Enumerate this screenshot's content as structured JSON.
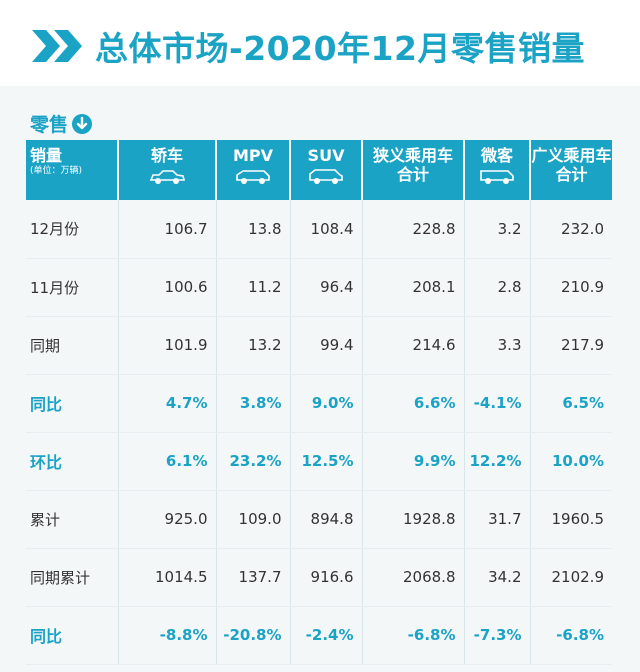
{
  "header": {
    "title": "总体市场-2020年12月零售销量",
    "chevron_icon": "double-chevron-right-icon"
  },
  "section": {
    "label": "零售",
    "icon": "arrow-down-circle-icon"
  },
  "colors": {
    "accent": "#1ba3c6",
    "text": "#333333"
  },
  "table": {
    "header_first": "销量",
    "header_unit": "(单位：万辆)",
    "columns": [
      {
        "line1": "轿车",
        "line2": "",
        "icon": "sedan-icon"
      },
      {
        "line1": "MPV",
        "line2": "",
        "icon": "mpv-icon"
      },
      {
        "line1": "SUV",
        "line2": "",
        "icon": "suv-icon"
      },
      {
        "line1": "狭义乘用车",
        "line2": "合计",
        "icon": ""
      },
      {
        "line1": "微客",
        "line2": "",
        "icon": "minivan-icon"
      },
      {
        "line1": "广义乘用车",
        "line2": "合计",
        "icon": ""
      }
    ],
    "rows": [
      {
        "label": "12月份",
        "values": [
          "106.7",
          "13.8",
          "108.4",
          "228.8",
          "3.2",
          "232.0"
        ],
        "pct": false
      },
      {
        "label": "11月份",
        "values": [
          "100.6",
          "11.2",
          "96.4",
          "208.1",
          "2.8",
          "210.9"
        ],
        "pct": false
      },
      {
        "label": "同期",
        "values": [
          "101.9",
          "13.2",
          "99.4",
          "214.6",
          "3.3",
          "217.9"
        ],
        "pct": false
      },
      {
        "label": "同比",
        "values": [
          "4.7%",
          "3.8%",
          "9.0%",
          "6.6%",
          "-4.1%",
          "6.5%"
        ],
        "pct": true
      },
      {
        "label": "环比",
        "values": [
          "6.1%",
          "23.2%",
          "12.5%",
          "9.9%",
          "12.2%",
          "10.0%"
        ],
        "pct": true
      },
      {
        "label": "累计",
        "values": [
          "925.0",
          "109.0",
          "894.8",
          "1928.8",
          "31.7",
          "1960.5"
        ],
        "pct": false
      },
      {
        "label": "同期累计",
        "values": [
          "1014.5",
          "137.7",
          "916.6",
          "2068.8",
          "34.2",
          "2102.9"
        ],
        "pct": false
      },
      {
        "label": "同比",
        "values": [
          "-8.8%",
          "-20.8%",
          "-2.4%",
          "-6.8%",
          "-7.3%",
          "-6.8%"
        ],
        "pct": true
      }
    ]
  }
}
